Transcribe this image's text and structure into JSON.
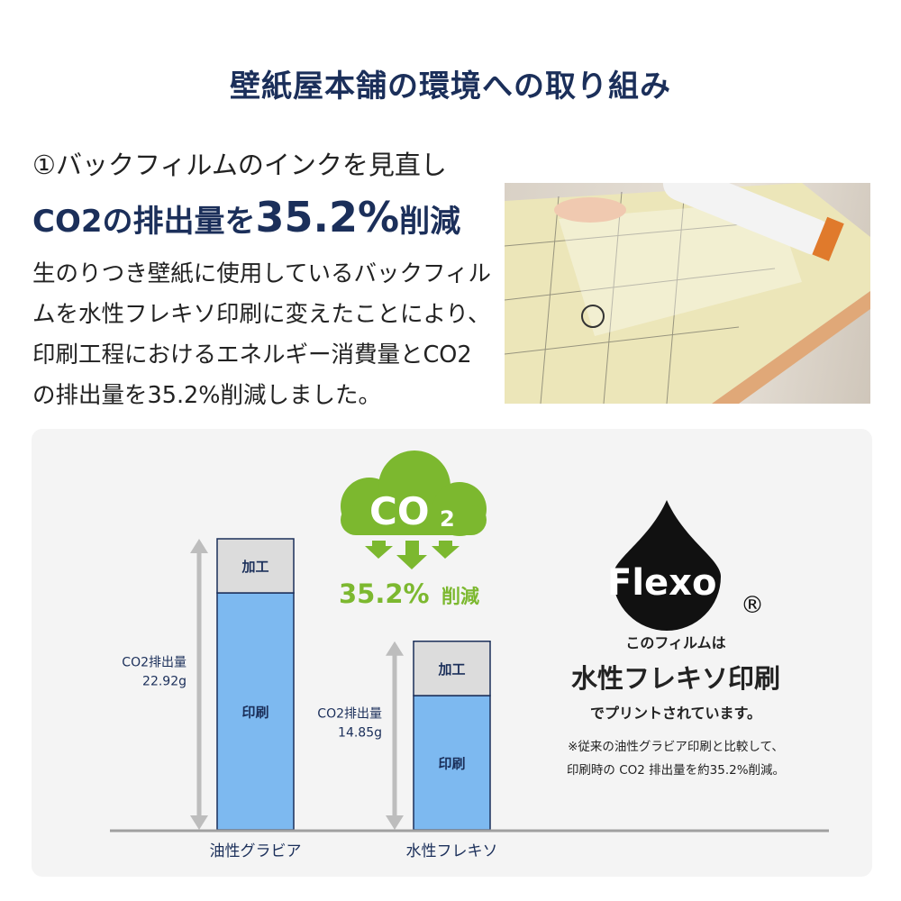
{
  "title": "壁紙屋本舗の環境への取り組み",
  "lead": {
    "line1": "①バックフィルムのインクを見直し",
    "line2_pre": "CO2の排出量を",
    "line2_big": "35.2%",
    "line2_post": "削減"
  },
  "body": "生のりつき壁紙に使用しているバックフィルムを水性フレキソ印刷に変えたことにより、印刷工程におけるエネルギー消費量とCO2の排出量を35.2%削減しました。",
  "cloud": {
    "label": "CO",
    "sub": "2",
    "reduction": "35.2%",
    "reduction_suffix": "削減"
  },
  "flexo": {
    "logo": "Flexo",
    "registered": "®",
    "line1": "このフィルムは",
    "line2": "水性フレキソ印刷",
    "line3": "でプリントされています。",
    "note1": "※従来の油性グラビア印刷と比較して、",
    "note2": "印刷時の CO2 排出量を約35.2%削減。"
  },
  "colors": {
    "navy": "#1b2f5a",
    "bar_print": "#7db9f0",
    "bar_process": "#dcdcdc",
    "green": "#7cb82f"
  },
  "chart_data": {
    "type": "bar",
    "stacked": true,
    "categories": [
      "油性グラビア",
      "水性フレキソ"
    ],
    "series": [
      {
        "name": "印刷",
        "values": [
          18.66,
          10.57
        ]
      },
      {
        "name": "加工",
        "values": [
          4.26,
          4.28
        ]
      }
    ],
    "totals": [
      22.92,
      14.85
    ],
    "total_labels": [
      {
        "label": "CO2排出量",
        "value": "22.92g"
      },
      {
        "label": "CO2排出量",
        "value": "14.85g"
      }
    ],
    "ylim": [
      0,
      22.92
    ],
    "grid": false
  }
}
